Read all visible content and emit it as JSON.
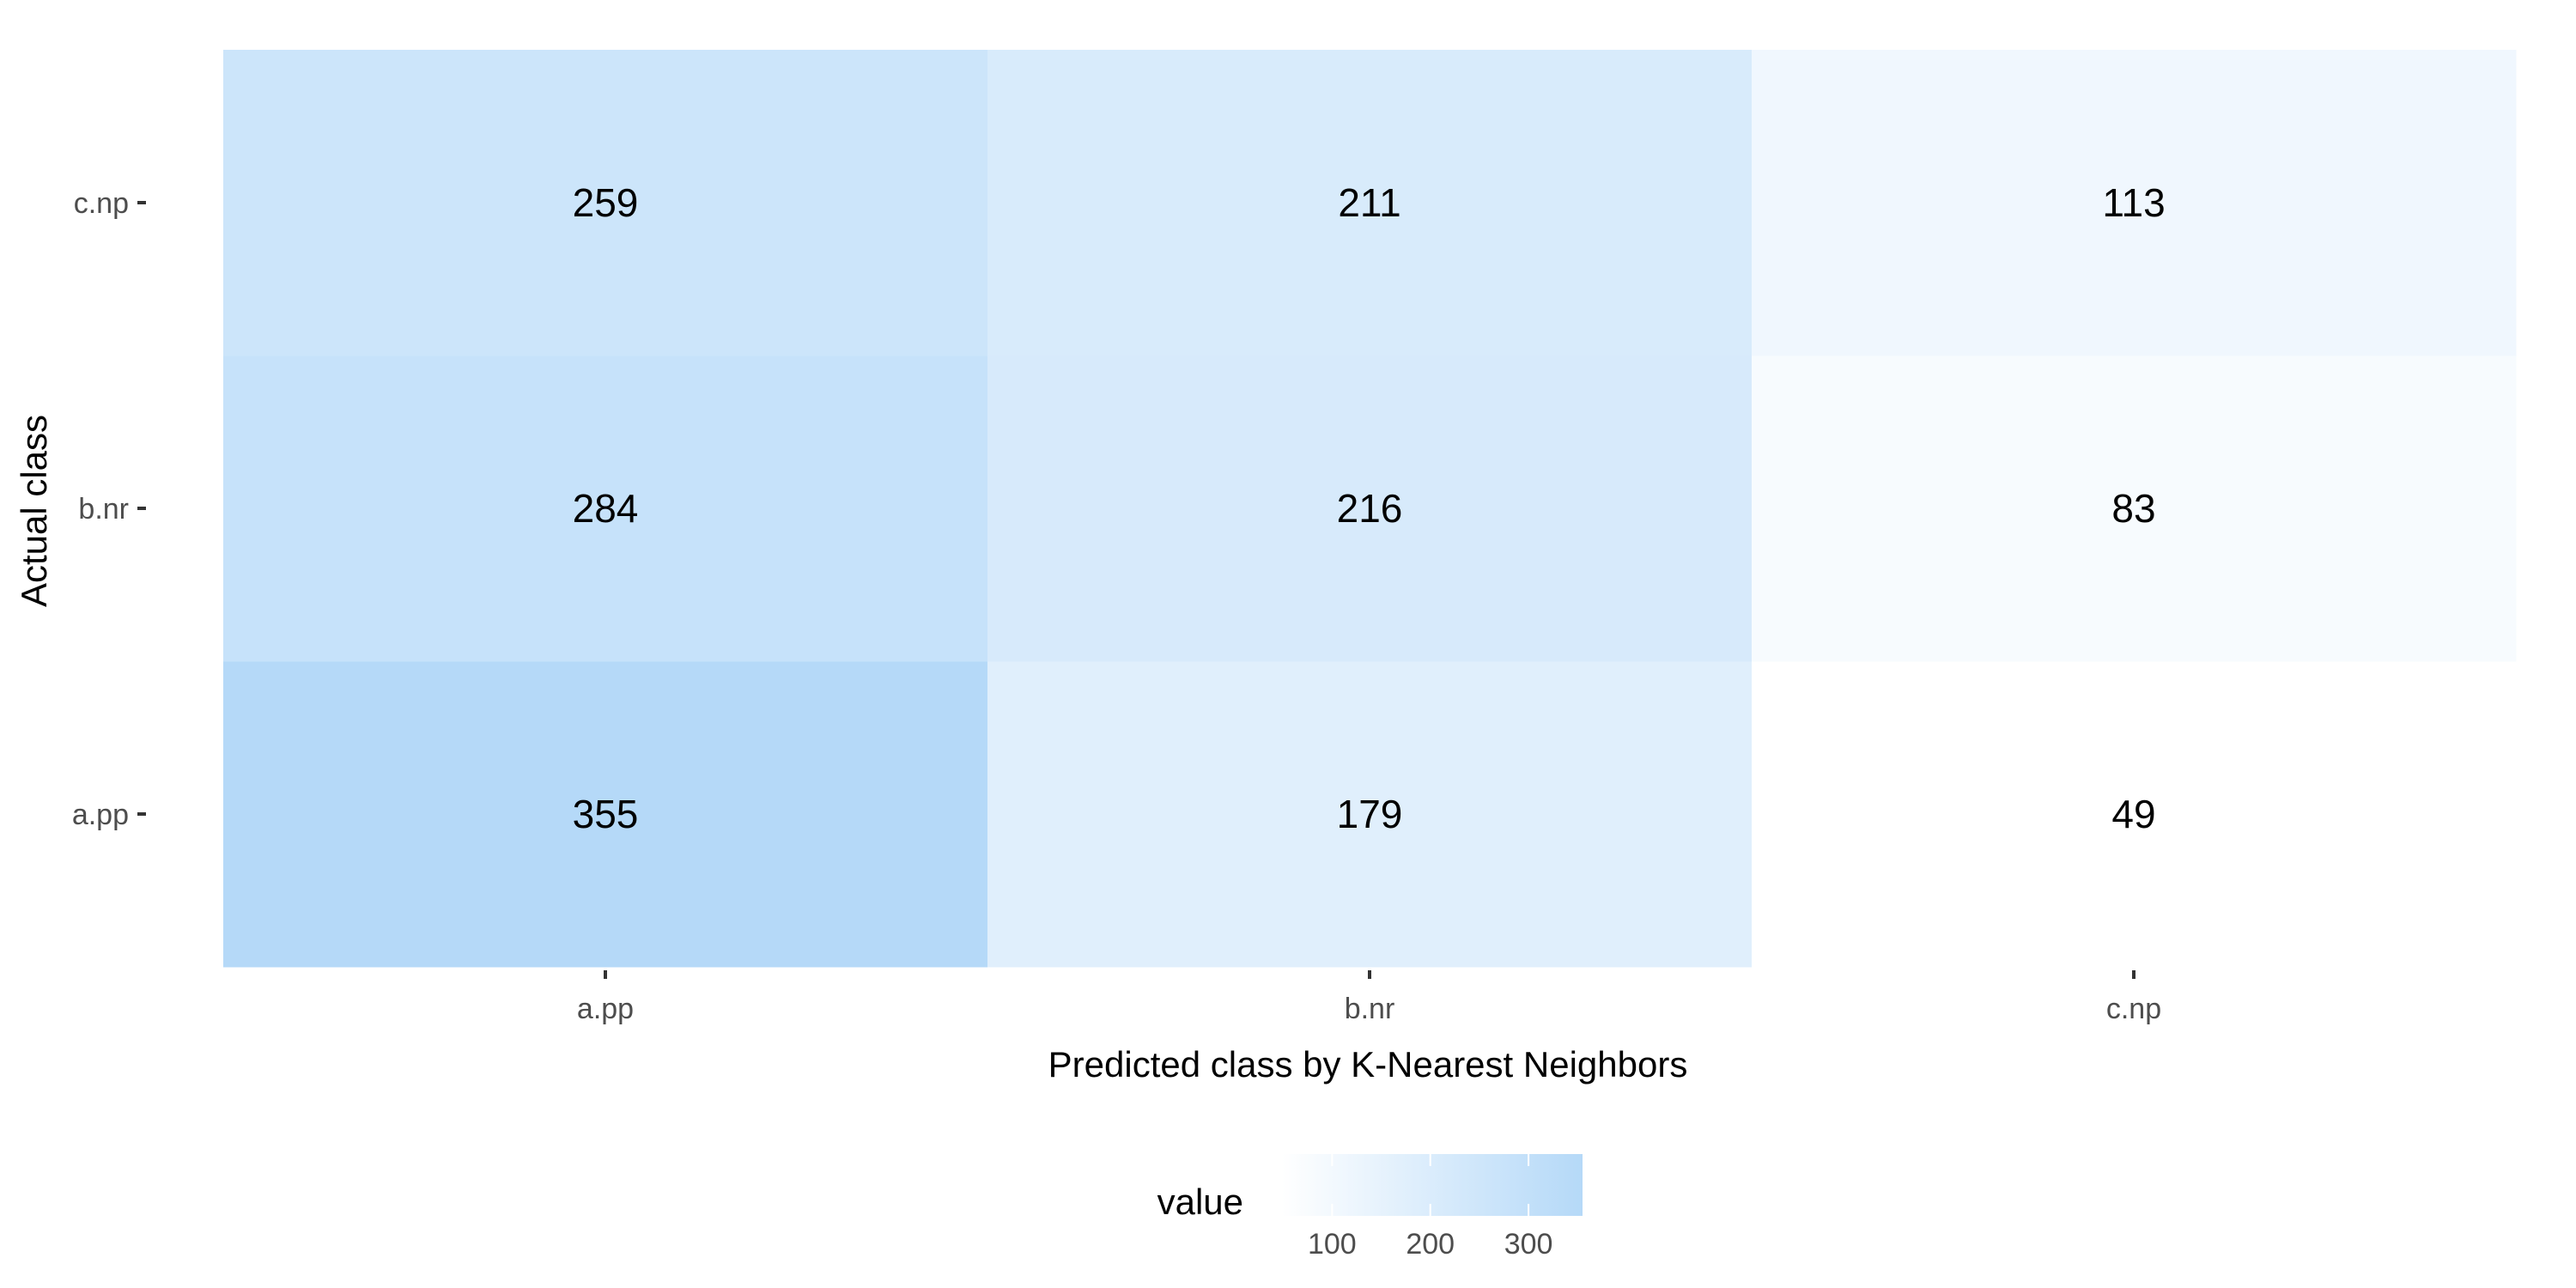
{
  "chart_data": {
    "type": "heatmap",
    "title": "",
    "xlabel": "Predicted class by K-Nearest Neighbors",
    "ylabel": "Actual class",
    "x_categories": [
      "a.pp",
      "b.nr",
      "c.np"
    ],
    "y_categories": [
      "a.pp",
      "b.nr",
      "c.np"
    ],
    "values": [
      [
        355,
        179,
        49
      ],
      [
        284,
        216,
        83
      ],
      [
        259,
        211,
        113
      ]
    ],
    "legend": {
      "title": "value",
      "position": "bottom",
      "ticks": [
        100,
        200,
        300
      ],
      "range": [
        49,
        355
      ],
      "low_color": "#ffffff",
      "high_color": "#b5d9f8"
    }
  }
}
